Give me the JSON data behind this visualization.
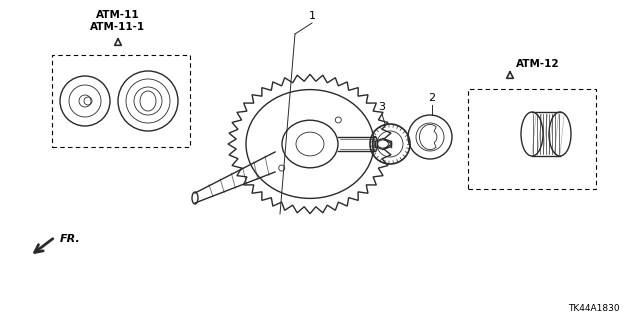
{
  "bg_color": "#ffffff",
  "line_color": "#2a2a2a",
  "label_color": "#000000",
  "atm11_label": "ATM-11\nATM-11-1",
  "atm12_label": "ATM-12",
  "part1_label": "1",
  "part2_label": "2",
  "part3_label": "3",
  "fr_label": "FR.",
  "catalog_label": "TK44A1830",
  "figsize": [
    6.4,
    3.19
  ],
  "dpi": 100
}
